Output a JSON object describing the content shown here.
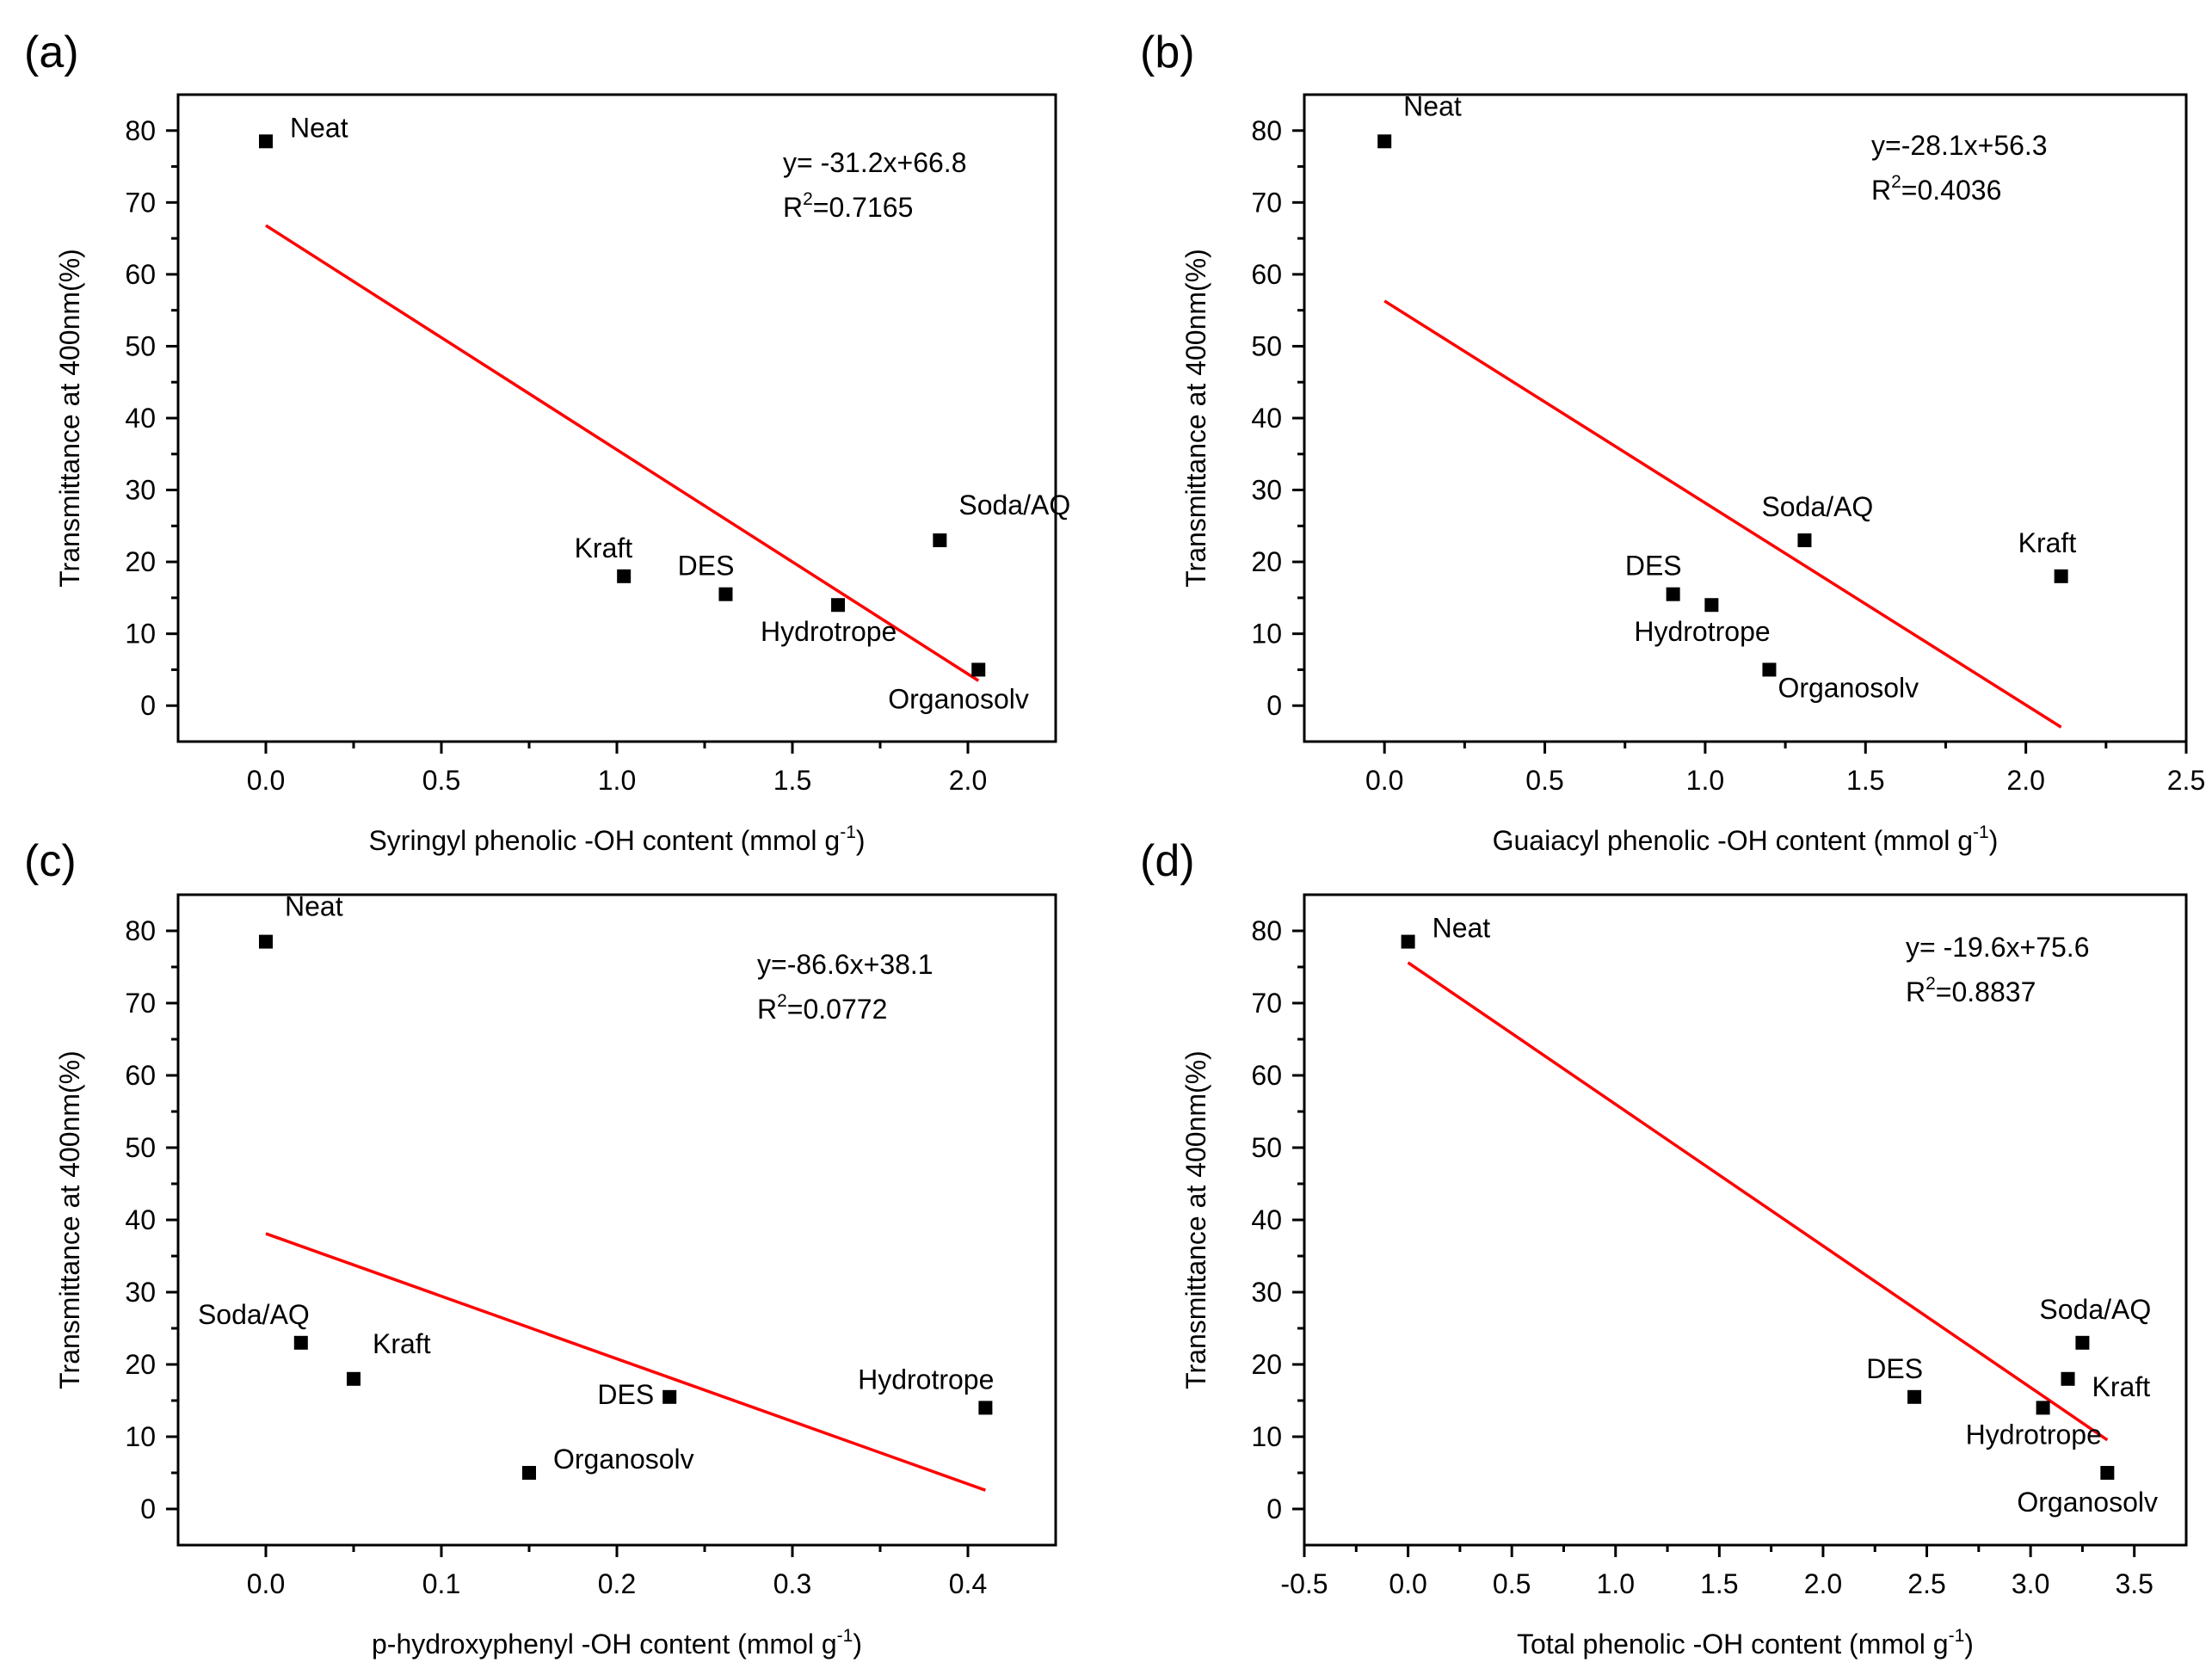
{
  "figure": {
    "panels_count": 4,
    "point_color": "#000000",
    "fit_color": "#ff0000"
  },
  "chart_data": [
    {
      "panel": "(a)",
      "type": "scatter",
      "xlabel": "Syringyl phenolic -OH content (mmol g",
      "xlabel_sup": "-1",
      "xlabel_end": ")",
      "ylabel": "Transmittance at 400nm(%)",
      "xlim": [
        -0.25,
        2.25
      ],
      "ylim": [
        -5,
        85
      ],
      "xticks": [
        0.0,
        0.5,
        1.0,
        1.5,
        2.0
      ],
      "xtick_labels": [
        "0.0",
        "0.5",
        "1.0",
        "1.5",
        "2.0"
      ],
      "yticks": [
        0,
        10,
        20,
        30,
        40,
        50,
        60,
        70,
        80
      ],
      "ytick_labels": [
        "0",
        "10",
        "20",
        "30",
        "40",
        "50",
        "60",
        "70",
        "80"
      ],
      "points": [
        {
          "label": "Neat",
          "x": 0.0,
          "y": 78.5,
          "label_pos": "right"
        },
        {
          "label": "Kraft",
          "x": 1.02,
          "y": 18.0,
          "label_pos": "above-left"
        },
        {
          "label": "DES",
          "x": 1.31,
          "y": 15.5,
          "label_pos": "above-left"
        },
        {
          "label": "Hydrotrope",
          "x": 1.63,
          "y": 14.0,
          "label_pos": "below"
        },
        {
          "label": "Soda/AQ",
          "x": 1.92,
          "y": 23.0,
          "label_pos": "above-right"
        },
        {
          "label": "Organosolv",
          "x": 2.03,
          "y": 5.0,
          "label_pos": "below-left"
        }
      ],
      "fit": {
        "slope": -31.2,
        "intercept": 66.8,
        "x_range": [
          0.0,
          2.03
        ]
      },
      "equation": "y= -31.2x+66.8",
      "r2_prefix": "R",
      "r2_sup": "2",
      "r2_value": "=0.7165"
    },
    {
      "panel": "(b)",
      "type": "scatter",
      "xlabel": "Guaiacyl phenolic -OH content (mmol g",
      "xlabel_sup": "-1",
      "xlabel_end": ")",
      "ylabel": "Transmittance at 400nm(%)",
      "xlim": [
        -0.25,
        2.5
      ],
      "ylim": [
        -5,
        85
      ],
      "xticks": [
        0.0,
        0.5,
        1.0,
        1.5,
        2.0,
        2.5
      ],
      "xtick_labels": [
        "0.0",
        "0.5",
        "1.0",
        "1.5",
        "2.0",
        "2.5"
      ],
      "yticks": [
        0,
        10,
        20,
        30,
        40,
        50,
        60,
        70,
        80
      ],
      "ytick_labels": [
        "0",
        "10",
        "20",
        "30",
        "40",
        "50",
        "60",
        "70",
        "80"
      ],
      "points": [
        {
          "label": "Neat",
          "x": 0.0,
          "y": 78.5,
          "label_pos": "above-right"
        },
        {
          "label": "DES",
          "x": 0.9,
          "y": 15.5,
          "label_pos": "above-left"
        },
        {
          "label": "Hydrotrope",
          "x": 1.02,
          "y": 14.0,
          "label_pos": "below"
        },
        {
          "label": "Organosolv",
          "x": 1.2,
          "y": 5.0,
          "label_pos": "below-right"
        },
        {
          "label": "Soda/AQ",
          "x": 1.31,
          "y": 23.0,
          "label_pos": "above"
        },
        {
          "label": "Kraft",
          "x": 2.11,
          "y": 18.0,
          "label_pos": "above"
        }
      ],
      "fit": {
        "slope": -28.1,
        "intercept": 56.3,
        "x_range": [
          0.0,
          2.11
        ]
      },
      "equation": "y=-28.1x+56.3",
      "r2_prefix": "R",
      "r2_sup": "2",
      "r2_value": "=0.4036"
    },
    {
      "panel": "(c)",
      "type": "scatter",
      "xlabel": "p-hydroxyphenyl -OH content (mmol g",
      "xlabel_sup": "-1",
      "xlabel_end": ")",
      "ylabel": "Transmittance at 400nm(%)",
      "xlim": [
        -0.05,
        0.45
      ],
      "ylim": [
        -5,
        85
      ],
      "xticks": [
        0.0,
        0.1,
        0.2,
        0.3,
        0.4
      ],
      "xtick_labels": [
        "0.0",
        "0.1",
        "0.2",
        "0.3",
        "0.4"
      ],
      "yticks": [
        0,
        10,
        20,
        30,
        40,
        50,
        60,
        70,
        80
      ],
      "ytick_labels": [
        "0",
        "10",
        "20",
        "30",
        "40",
        "50",
        "60",
        "70",
        "80"
      ],
      "points": [
        {
          "label": "Neat",
          "x": 0.0,
          "y": 78.5,
          "label_pos": "above-right"
        },
        {
          "label": "Soda/AQ",
          "x": 0.02,
          "y": 23.0,
          "label_pos": "above-left"
        },
        {
          "label": "Kraft",
          "x": 0.05,
          "y": 18.0,
          "label_pos": "above-right"
        },
        {
          "label": "Organosolv",
          "x": 0.15,
          "y": 5.0,
          "label_pos": "right"
        },
        {
          "label": "DES",
          "x": 0.23,
          "y": 15.5,
          "label_pos": "left"
        },
        {
          "label": "Hydrotrope",
          "x": 0.41,
          "y": 14.0,
          "label_pos": "above-left"
        }
      ],
      "fit": {
        "slope": -86.6,
        "intercept": 38.1,
        "x_range": [
          0.0,
          0.41
        ]
      },
      "equation": "y=-86.6x+38.1",
      "r2_prefix": "R",
      "r2_sup": "2",
      "r2_value": "=0.0772"
    },
    {
      "panel": "(d)",
      "type": "scatter",
      "xlabel": "Total phenolic -OH content (mmol g",
      "xlabel_sup": "-1",
      "xlabel_end": ")",
      "ylabel": "Transmittance at 400nm(%)",
      "xlim": [
        -0.5,
        3.75
      ],
      "ylim": [
        -5,
        85
      ],
      "xticks": [
        -0.5,
        0.0,
        0.5,
        1.0,
        1.5,
        2.0,
        2.5,
        3.0,
        3.5
      ],
      "xtick_labels": [
        "-0.5",
        "0.0",
        "0.5",
        "1.0",
        "1.5",
        "2.0",
        "2.5",
        "3.0",
        "3.5"
      ],
      "yticks": [
        0,
        10,
        20,
        30,
        40,
        50,
        60,
        70,
        80
      ],
      "ytick_labels": [
        "0",
        "10",
        "20",
        "30",
        "40",
        "50",
        "60",
        "70",
        "80"
      ],
      "points": [
        {
          "label": "Neat",
          "x": 0.0,
          "y": 78.5,
          "label_pos": "right"
        },
        {
          "label": "DES",
          "x": 2.44,
          "y": 15.5,
          "label_pos": "above-left"
        },
        {
          "label": "Hydrotrope",
          "x": 3.06,
          "y": 14.0,
          "label_pos": "below"
        },
        {
          "label": "Kraft",
          "x": 3.18,
          "y": 18.0,
          "label_pos": "right-low"
        },
        {
          "label": "Soda/AQ",
          "x": 3.25,
          "y": 23.0,
          "label_pos": "above"
        },
        {
          "label": "Organosolv",
          "x": 3.37,
          "y": 5.0,
          "label_pos": "below-left"
        }
      ],
      "fit": {
        "slope": -19.6,
        "intercept": 75.6,
        "x_range": [
          0.0,
          3.37
        ]
      },
      "equation": "y= -19.6x+75.6",
      "r2_prefix": "R",
      "r2_sup": "2",
      "r2_value": "=0.8837"
    }
  ]
}
